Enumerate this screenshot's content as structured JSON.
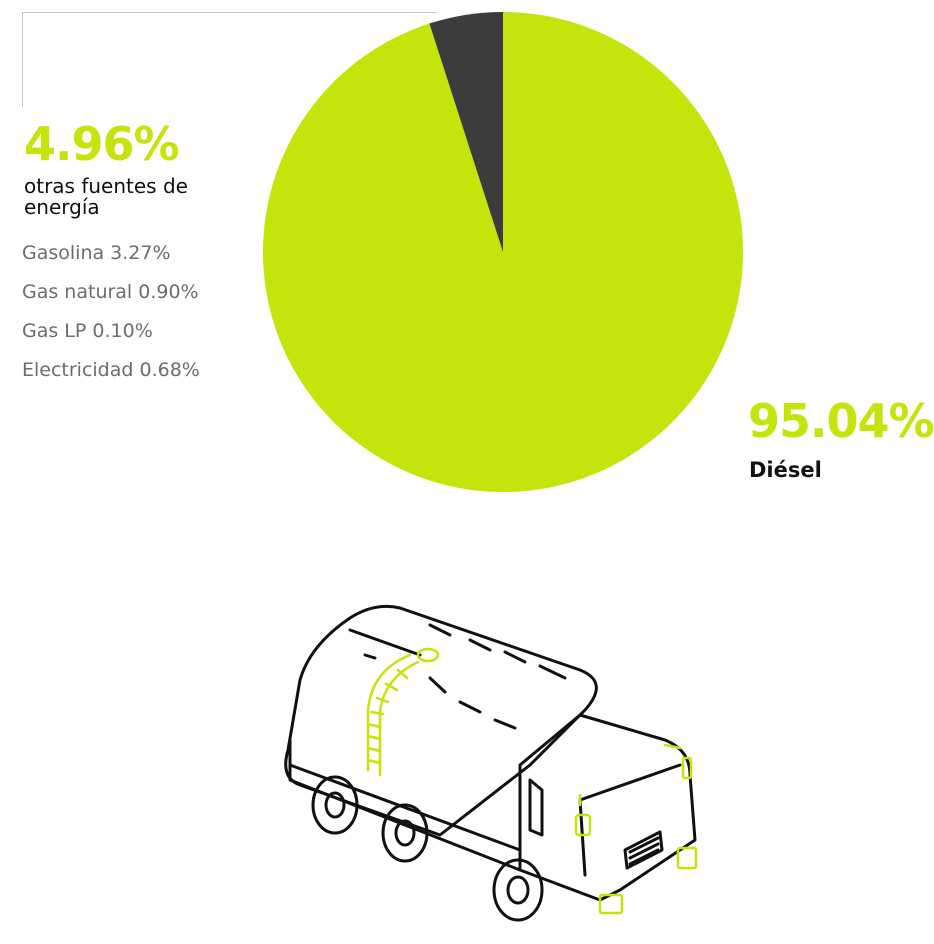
{
  "colors": {
    "accent": "#c5e40b",
    "dark_slice": "#3c3c3c",
    "line": "#111111",
    "muted": "#6d6d6d"
  },
  "labels": {
    "other_percent": "4.96%",
    "other_name": "otras fuentes de energía",
    "diesel_percent": "95.04%",
    "diesel_name": "Diésel"
  },
  "breakdown": [
    {
      "label": "Gasolina 3.27%"
    },
    {
      "label": "Gas natural 0.90%"
    },
    {
      "label": "Gas LP 0.10%"
    },
    {
      "label": "Electricidad 0.68%"
    }
  ],
  "chart_data": {
    "type": "pie",
    "categories": [
      "Diésel",
      "otras fuentes de energía"
    ],
    "values": [
      95.04,
      4.96
    ],
    "colors": [
      "#c5e40b",
      "#3c3c3c"
    ],
    "legend": "none",
    "breakdown_of_other": [
      {
        "category": "Gasolina",
        "value": 3.27
      },
      {
        "category": "Gas natural",
        "value": 0.9
      },
      {
        "category": "Gas LP",
        "value": 0.1
      },
      {
        "category": "Electricidad",
        "value": 0.68
      }
    ]
  },
  "illustration": {
    "icon": "tanker-truck-icon"
  }
}
